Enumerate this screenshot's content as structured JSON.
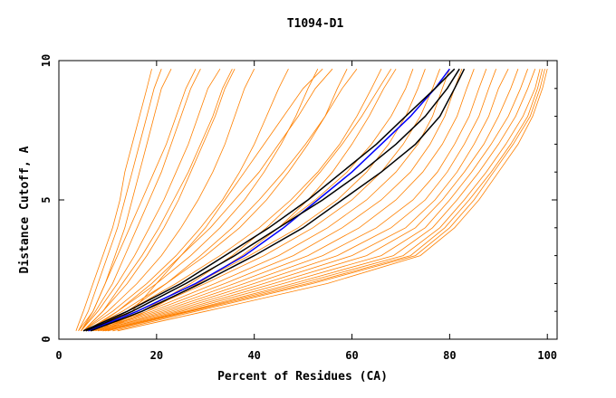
{
  "chart_data": {
    "type": "line",
    "title": "T1094-D1",
    "xlabel": "Percent of Residues (CA)",
    "ylabel": "Distance Cutoff, A",
    "xlim": [
      0,
      102
    ],
    "ylim": [
      0,
      10
    ],
    "x_ticks": [
      0,
      20,
      40,
      60,
      80,
      100
    ],
    "y_ticks": [
      0,
      5,
      10
    ],
    "grid": false,
    "colors": {
      "models": "#ff8000",
      "highlight_blue": "#0000ff",
      "highlight_black": "#000000"
    },
    "y_samples": [
      0.3,
      1,
      2,
      3,
      4,
      5,
      6,
      7,
      8,
      9,
      9.7
    ],
    "series": [
      {
        "style": "orange",
        "x": [
          3.5,
          5,
          7,
          9,
          11,
          12.5,
          13.5,
          15,
          16.5,
          18,
          19
        ]
      },
      {
        "style": "orange",
        "x": [
          4,
          6,
          8,
          10,
          12,
          13.5,
          15,
          16.5,
          18,
          19.5,
          21
        ]
      },
      {
        "style": "orange",
        "x": [
          4,
          7,
          9.5,
          11.5,
          13.5,
          15,
          16.5,
          18,
          19.5,
          21,
          23
        ]
      },
      {
        "style": "orange",
        "x": [
          4.5,
          7.5,
          11,
          13.5,
          16,
          18.5,
          21,
          23,
          25,
          27,
          29
        ]
      },
      {
        "style": "orange",
        "x": [
          4.5,
          8,
          12,
          15.5,
          18.5,
          21.5,
          24,
          26.5,
          28.5,
          30.5,
          33
        ]
      },
      {
        "style": "orange",
        "x": [
          5,
          9,
          14,
          18,
          21.5,
          24.5,
          27,
          29.5,
          32,
          34,
          36
        ]
      },
      {
        "style": "orange",
        "x": [
          5,
          10,
          16,
          21,
          25,
          28.5,
          31.5,
          34,
          36,
          38,
          40
        ]
      },
      {
        "style": "orange",
        "x": [
          5,
          11,
          18,
          24,
          29,
          33.5,
          37,
          40,
          42.5,
          45,
          47
        ]
      },
      {
        "style": "orange",
        "x": [
          5.5,
          12,
          20,
          27,
          33,
          38,
          42,
          45.5,
          48.5,
          51,
          53
        ]
      },
      {
        "style": "orange",
        "x": [
          5.5,
          13,
          22,
          30,
          37,
          42.5,
          47,
          51,
          54.5,
          57,
          59
        ]
      },
      {
        "style": "orange",
        "x": [
          6,
          14,
          24,
          33,
          41,
          47.5,
          53,
          57.5,
          61,
          64,
          66
        ]
      },
      {
        "style": "orange",
        "x": [
          6,
          15,
          26,
          36,
          45,
          52.5,
          59,
          64,
          68,
          71,
          72.5
        ]
      },
      {
        "style": "orange",
        "x": [
          6,
          16,
          28,
          39,
          49,
          57,
          63,
          67.5,
          71,
          73.5,
          75
        ]
      },
      {
        "style": "orange",
        "x": [
          6.5,
          17,
          30,
          42,
          52,
          60,
          66,
          70.5,
          74,
          76.5,
          78
        ]
      },
      {
        "style": "orange",
        "x": [
          6.5,
          18,
          32,
          45,
          55,
          63,
          69,
          73.5,
          76.5,
          78.5,
          80
        ]
      },
      {
        "style": "orange",
        "x": [
          7,
          19,
          34,
          48,
          58,
          66,
          72,
          76,
          79,
          81,
          82.5
        ]
      },
      {
        "style": "orange",
        "x": [
          7,
          20,
          36,
          51,
          61.5,
          69,
          74.5,
          78.5,
          81.5,
          83.5,
          85
        ]
      },
      {
        "style": "orange",
        "x": [
          7.5,
          21,
          38,
          54,
          65,
          72.5,
          77.5,
          81,
          84,
          86,
          87.5
        ]
      },
      {
        "style": "orange",
        "x": [
          8,
          22,
          40,
          57,
          68,
          75,
          79.5,
          83,
          86,
          88,
          89.5
        ]
      },
      {
        "style": "orange",
        "x": [
          8,
          23,
          42,
          60,
          71,
          77,
          81.5,
          85,
          88,
          90,
          92
        ]
      },
      {
        "style": "orange",
        "x": [
          8.5,
          24,
          44,
          63,
          73,
          78.5,
          83,
          87,
          90,
          92.5,
          94
        ]
      },
      {
        "style": "orange",
        "x": [
          9,
          25,
          46,
          66,
          75,
          80,
          84.5,
          88.5,
          92,
          94.5,
          96
        ]
      },
      {
        "style": "orange",
        "x": [
          9,
          26,
          48,
          68.5,
          76.5,
          81.5,
          86,
          90,
          93.5,
          96,
          97.5
        ]
      },
      {
        "style": "orange",
        "x": [
          9.5,
          26.5,
          49.5,
          70.5,
          78,
          83,
          87.5,
          91.5,
          95,
          97.5,
          98.5
        ]
      },
      {
        "style": "orange",
        "x": [
          10,
          27,
          51,
          72,
          79,
          84,
          88.5,
          92.5,
          96,
          98,
          99
        ]
      },
      {
        "style": "orange",
        "x": [
          11,
          28,
          52,
          73,
          80,
          85,
          89,
          93,
          96.5,
          98.5,
          99.5
        ]
      },
      {
        "style": "orange",
        "x": [
          12,
          30,
          55,
          74,
          81,
          86,
          90,
          94,
          97,
          99,
          100
        ]
      },
      {
        "style": "orange",
        "x": [
          8,
          15,
          20,
          25,
          30,
          34,
          38,
          42,
          46,
          50,
          54
        ]
      },
      {
        "style": "orange",
        "x": [
          7,
          14,
          22,
          29,
          35.5,
          41,
          46,
          50.5,
          54.5,
          58,
          61
        ]
      },
      {
        "style": "orange",
        "x": [
          8,
          17,
          27,
          35.5,
          42.5,
          48.5,
          53.5,
          58,
          62,
          65.5,
          68
        ]
      },
      {
        "style": "orange",
        "x": [
          9,
          18,
          28.5,
          37.5,
          45,
          51,
          56,
          60,
          63.5,
          66.5,
          69
        ]
      },
      {
        "style": "orange",
        "x": [
          6,
          12,
          19,
          25,
          31,
          36,
          41,
          45,
          49,
          52.5,
          56
        ]
      },
      {
        "style": "orange",
        "x": [
          5,
          9,
          13,
          17,
          20.5,
          23.5,
          26.5,
          29,
          31.5,
          33.5,
          35.5
        ]
      },
      {
        "style": "orange",
        "x": [
          4.5,
          7,
          9.5,
          12,
          14.5,
          17,
          19.5,
          22,
          24,
          26,
          28
        ]
      },
      {
        "style": "blue",
        "x": [
          6,
          16,
          28,
          38,
          46,
          53,
          60,
          66,
          72,
          77,
          80
        ]
      },
      {
        "style": "black",
        "x": [
          5.5,
          15,
          26,
          36,
          45,
          54,
          62,
          69,
          75,
          79.5,
          82
        ]
      },
      {
        "style": "black",
        "x": [
          5,
          14,
          25,
          34,
          43,
          51,
          58,
          65,
          71,
          77,
          81
        ]
      },
      {
        "style": "black",
        "x": [
          6.5,
          17,
          29,
          40,
          50,
          58,
          66,
          73,
          78,
          81,
          83
        ]
      }
    ]
  }
}
